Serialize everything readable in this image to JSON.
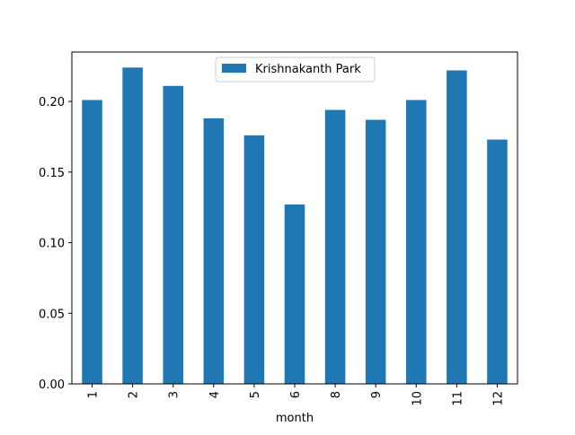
{
  "chart_data": {
    "type": "bar",
    "title": "",
    "xlabel": "month",
    "ylabel": "",
    "categories": [
      "1",
      "2",
      "3",
      "4",
      "5",
      "6",
      "8",
      "9",
      "10",
      "11",
      "12"
    ],
    "series": [
      {
        "name": "Krishnakanth Park",
        "color": "#1f77b4",
        "values": [
          0.201,
          0.224,
          0.211,
          0.188,
          0.176,
          0.127,
          0.194,
          0.187,
          0.201,
          0.222,
          0.173
        ]
      }
    ],
    "ylim": [
      0,
      0.235
    ],
    "yticks": [
      "0.00",
      "0.05",
      "0.10",
      "0.15",
      "0.20"
    ],
    "grid": false,
    "legend": {
      "placement": "upper center"
    }
  }
}
